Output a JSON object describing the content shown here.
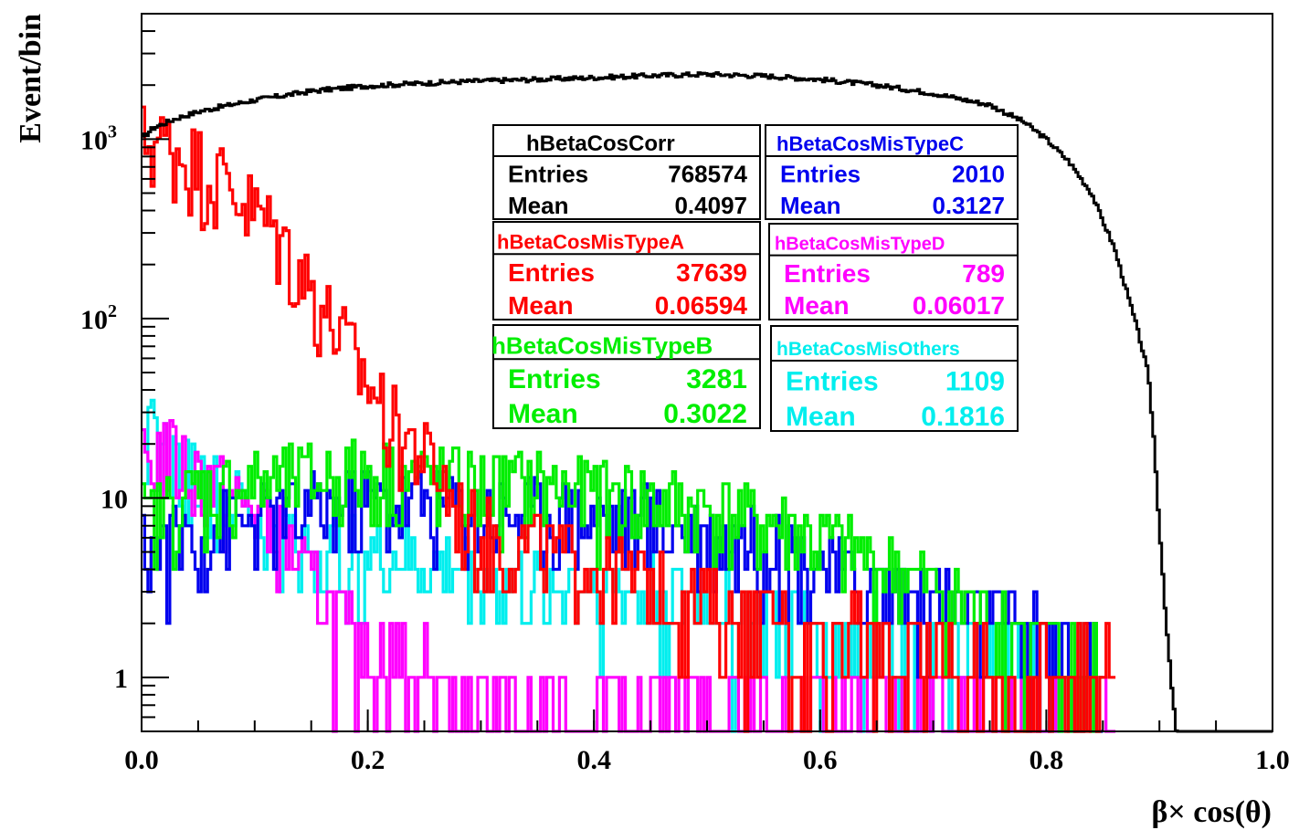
{
  "chart_data": {
    "type": "line",
    "title": "",
    "xlabel": "β× cos(θ)",
    "ylabel": "Event/bin",
    "xlim": [
      0.0,
      1.0
    ],
    "ylim": [
      0.5,
      5000
    ],
    "y_scale": "log",
    "grid": false,
    "x_ticks": [
      "0.0",
      "0.2",
      "0.4",
      "0.6",
      "0.8",
      "1.0"
    ],
    "y_ticks": [
      {
        "value": 1,
        "label": "1"
      },
      {
        "value": 10,
        "label": "10"
      },
      {
        "value": 100,
        "label": "10",
        "exp": "2"
      },
      {
        "value": 1000,
        "label": "10",
        "exp": "3"
      }
    ],
    "series": [
      {
        "name": "hBetaCosCorr",
        "color": "#000000",
        "points": [
          [
            0.0,
            1000
          ],
          [
            0.01,
            1150
          ],
          [
            0.03,
            1300
          ],
          [
            0.05,
            1420
          ],
          [
            0.08,
            1560
          ],
          [
            0.1,
            1650
          ],
          [
            0.15,
            1850
          ],
          [
            0.2,
            1980
          ],
          [
            0.25,
            2050
          ],
          [
            0.3,
            2110
          ],
          [
            0.35,
            2150
          ],
          [
            0.4,
            2200
          ],
          [
            0.45,
            2260
          ],
          [
            0.5,
            2300
          ],
          [
            0.55,
            2250
          ],
          [
            0.6,
            2150
          ],
          [
            0.65,
            2000
          ],
          [
            0.7,
            1800
          ],
          [
            0.75,
            1550
          ],
          [
            0.78,
            1250
          ],
          [
            0.8,
            1000
          ],
          [
            0.82,
            750
          ],
          [
            0.84,
            500
          ],
          [
            0.85,
            350
          ],
          [
            0.86,
            250
          ],
          [
            0.87,
            150
          ],
          [
            0.88,
            90
          ],
          [
            0.89,
            50
          ],
          [
            0.895,
            22
          ],
          [
            0.9,
            7
          ],
          [
            0.905,
            2.5
          ],
          [
            0.91,
            1
          ],
          [
            0.915,
            0.5
          ]
        ],
        "stats": {
          "Entries": "768574",
          "Mean": "0.4097"
        }
      },
      {
        "name": "hBetaCosMisTypeA",
        "color": "#ff0000",
        "points": [
          [
            0.0,
            950
          ],
          [
            0.02,
            900
          ],
          [
            0.04,
            780
          ],
          [
            0.06,
            640
          ],
          [
            0.08,
            520
          ],
          [
            0.1,
            380
          ],
          [
            0.12,
            280
          ],
          [
            0.14,
            180
          ],
          [
            0.16,
            110
          ],
          [
            0.18,
            70
          ],
          [
            0.2,
            42
          ],
          [
            0.22,
            26
          ],
          [
            0.24,
            19
          ],
          [
            0.26,
            14
          ],
          [
            0.28,
            8
          ],
          [
            0.3,
            6
          ],
          [
            0.35,
            5
          ],
          [
            0.4,
            4
          ],
          [
            0.45,
            3
          ],
          [
            0.5,
            2.5
          ],
          [
            0.55,
            2
          ],
          [
            0.6,
            1.8
          ],
          [
            0.65,
            1.4
          ],
          [
            0.7,
            1.2
          ],
          [
            0.75,
            1
          ],
          [
            0.8,
            1
          ],
          [
            0.86,
            1
          ]
        ],
        "stats": {
          "Entries": "37639",
          "Mean": "0.06594"
        }
      },
      {
        "name": "hBetaCosMisTypeB",
        "color": "#00ee00",
        "points": [
          [
            0.0,
            7
          ],
          [
            0.05,
            10
          ],
          [
            0.1,
            11
          ],
          [
            0.15,
            12
          ],
          [
            0.2,
            13
          ],
          [
            0.25,
            12
          ],
          [
            0.3,
            11
          ],
          [
            0.35,
            11
          ],
          [
            0.4,
            10
          ],
          [
            0.45,
            9
          ],
          [
            0.5,
            8
          ],
          [
            0.55,
            7
          ],
          [
            0.6,
            5.5
          ],
          [
            0.65,
            4
          ],
          [
            0.7,
            3
          ],
          [
            0.75,
            2
          ],
          [
            0.8,
            1.5
          ],
          [
            0.85,
            1
          ]
        ],
        "stats": {
          "Entries": "3281",
          "Mean": "0.3022"
        }
      },
      {
        "name": "hBetaCosMisTypeC",
        "color": "#0000ee",
        "points": [
          [
            0.0,
            5
          ],
          [
            0.05,
            6
          ],
          [
            0.1,
            7
          ],
          [
            0.15,
            8
          ],
          [
            0.2,
            9
          ],
          [
            0.25,
            9
          ],
          [
            0.3,
            8
          ],
          [
            0.35,
            8
          ],
          [
            0.4,
            7.5
          ],
          [
            0.45,
            7
          ],
          [
            0.5,
            6
          ],
          [
            0.55,
            5
          ],
          [
            0.6,
            4
          ],
          [
            0.65,
            3
          ],
          [
            0.7,
            2.5
          ],
          [
            0.75,
            2
          ],
          [
            0.8,
            1.5
          ],
          [
            0.83,
            1.2
          ],
          [
            0.85,
            1
          ]
        ],
        "stats": {
          "Entries": "2010",
          "Mean": "0.3127"
        }
      },
      {
        "name": "hBetaCosMisTypeD",
        "color": "#ff00ff",
        "points": [
          [
            0.0,
            14
          ],
          [
            0.02,
            18
          ],
          [
            0.04,
            14
          ],
          [
            0.06,
            12
          ],
          [
            0.08,
            9
          ],
          [
            0.1,
            8
          ],
          [
            0.12,
            6
          ],
          [
            0.14,
            4
          ],
          [
            0.16,
            2.5
          ],
          [
            0.18,
            1.8
          ],
          [
            0.2,
            1.4
          ],
          [
            0.25,
            1
          ],
          [
            0.3,
            0.8
          ],
          [
            0.4,
            0.7
          ],
          [
            0.5,
            0.6
          ],
          [
            0.6,
            0.6
          ],
          [
            0.7,
            0.55
          ],
          [
            0.8,
            0.55
          ],
          [
            0.86,
            0.55
          ]
        ],
        "stats": {
          "Entries": "789",
          "Mean": "0.06017"
        }
      },
      {
        "name": "hBetaCosMisOthers",
        "color": "#00eeee",
        "points": [
          [
            0.0,
            25
          ],
          [
            0.02,
            17
          ],
          [
            0.04,
            13
          ],
          [
            0.06,
            11
          ],
          [
            0.08,
            9
          ],
          [
            0.1,
            7
          ],
          [
            0.12,
            6
          ],
          [
            0.15,
            5
          ],
          [
            0.2,
            4.5
          ],
          [
            0.25,
            4
          ],
          [
            0.3,
            3.5
          ],
          [
            0.35,
            3
          ],
          [
            0.4,
            3
          ],
          [
            0.45,
            2.8
          ],
          [
            0.5,
            2.5
          ],
          [
            0.55,
            2
          ],
          [
            0.6,
            1.8
          ],
          [
            0.65,
            1.5
          ],
          [
            0.7,
            1.3
          ],
          [
            0.75,
            1.1
          ],
          [
            0.8,
            1
          ],
          [
            0.85,
            1
          ]
        ],
        "stats": {
          "Entries": "1109",
          "Mean": "0.1816"
        }
      }
    ]
  }
}
